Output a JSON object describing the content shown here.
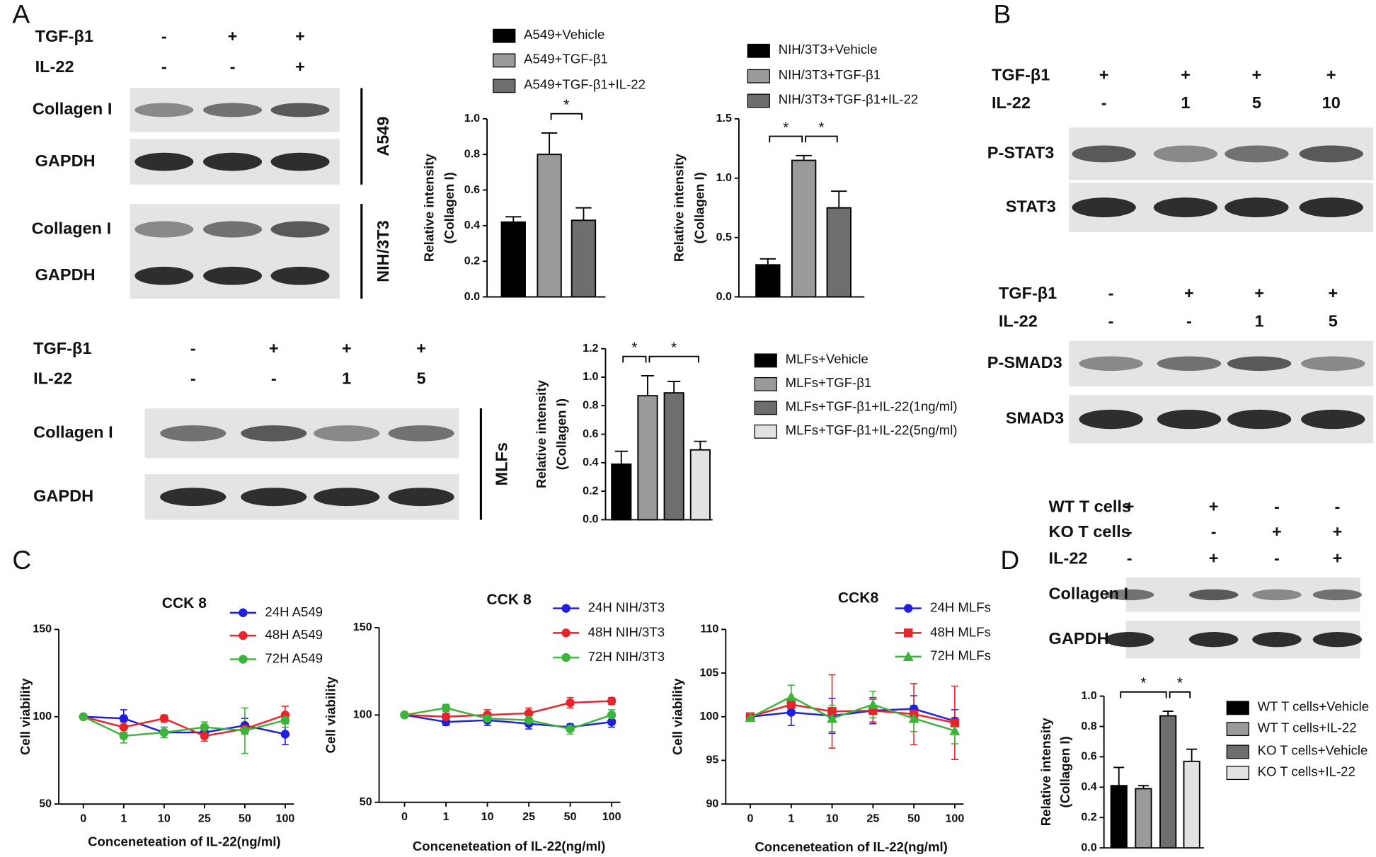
{
  "panel_labels": [
    "A",
    "B",
    "C",
    "D"
  ],
  "blots": [
    {
      "rows": [
        {
          "label": "TGF-β1",
          "lanes": [
            "-",
            "+",
            "+"
          ]
        },
        {
          "label": "IL-22",
          "lanes": [
            "-",
            "-",
            "+"
          ]
        }
      ],
      "groups": [
        {
          "name": "A549",
          "bands": [
            "Collagen I",
            "GAPDH"
          ]
        },
        {
          "name": "NIH/3T3",
          "bands": [
            "Collagen I",
            "GAPDH"
          ]
        }
      ]
    },
    {
      "rows": [
        {
          "label": "TGF-β1",
          "lanes": [
            "-",
            "+",
            "+",
            "+"
          ]
        },
        {
          "label": "IL-22",
          "lanes": [
            "-",
            "-",
            "1",
            "5"
          ]
        }
      ],
      "groups": [
        {
          "name": "MLFs",
          "bands": [
            "Collagen I",
            "GAPDH"
          ]
        }
      ]
    },
    {
      "rows": [
        {
          "label": "TGF-β1",
          "lanes": [
            "+",
            "+",
            "+",
            "+"
          ]
        },
        {
          "label": "IL-22",
          "lanes": [
            "-",
            "1",
            "5",
            "10"
          ]
        }
      ],
      "groups": [
        {
          "bands": [
            "P-STAT3",
            "STAT3"
          ]
        }
      ]
    },
    {
      "rows": [
        {
          "label": "TGF-β1",
          "lanes": [
            "-",
            "+",
            "+",
            "+"
          ]
        },
        {
          "label": "IL-22",
          "lanes": [
            "-",
            "-",
            "1",
            "5"
          ]
        }
      ],
      "groups": [
        {
          "bands": [
            "P-SMAD3",
            "SMAD3"
          ]
        }
      ]
    },
    {
      "rows": [
        {
          "label": "WT T cells",
          "lanes": [
            "+",
            "+",
            "-",
            "-"
          ]
        },
        {
          "label": "KO T cells",
          "lanes": [
            "-",
            "-",
            "+",
            "+"
          ]
        },
        {
          "label": "IL-22",
          "lanes": [
            "-",
            "+",
            "-",
            "+"
          ]
        }
      ],
      "groups": [
        {
          "bands": [
            "Collagen I",
            "GAPDH"
          ]
        }
      ]
    }
  ],
  "chart_data": [
    {
      "type": "bar",
      "ylabel": [
        "Relative intensity",
        "(Collagen I)"
      ],
      "ylim": [
        0,
        1.0
      ],
      "yticks": [
        {
          "value": 0,
          "label": "0.0"
        },
        0.2,
        0.4,
        0.6,
        0.8,
        {
          "value": 1.0,
          "label": "1.0"
        }
      ],
      "series": [
        {
          "name": "A549+Vehicle",
          "color": "#000000",
          "values": [
            0.42
          ],
          "errors": [
            0.03
          ]
        },
        {
          "name": "A549+TGF-β1",
          "color": "#9a9a9a",
          "values": [
            0.8
          ],
          "errors": [
            0.12
          ]
        },
        {
          "name": "A549+TGF-β1+IL-22",
          "color": "#6e6e6e",
          "values": [
            0.43
          ],
          "errors": [
            0.07
          ]
        }
      ],
      "annotations": [
        {
          "text": "*",
          "between": [
            1,
            2
          ]
        }
      ]
    },
    {
      "type": "bar",
      "ylabel": [
        "Relative intensity",
        "(Collagen I)"
      ],
      "ylim": [
        0,
        1.5
      ],
      "yticks": [
        {
          "value": 0,
          "label": "0.0"
        },
        0.5,
        {
          "value": 1.0,
          "label": "1.0"
        },
        1.5
      ],
      "series": [
        {
          "name": "NIH/3T3+Vehicle",
          "color": "#000000",
          "values": [
            0.27
          ],
          "errors": [
            0.05
          ]
        },
        {
          "name": "NIH/3T3+TGF-β1",
          "color": "#9a9a9a",
          "values": [
            1.15
          ],
          "errors": [
            0.04
          ]
        },
        {
          "name": "NIH/3T3+TGF-β1+IL-22",
          "color": "#6e6e6e",
          "values": [
            0.75
          ],
          "errors": [
            0.14
          ]
        }
      ],
      "annotations": [
        {
          "text": "*",
          "between": [
            0,
            1
          ]
        },
        {
          "text": "*",
          "between": [
            1,
            2
          ]
        }
      ]
    },
    {
      "type": "bar",
      "ylabel": [
        "Relative intensity",
        "(Collagen I)"
      ],
      "ylim": [
        0,
        1.2
      ],
      "yticks": [
        {
          "value": 0,
          "label": "0.0"
        },
        0.2,
        0.4,
        0.6,
        0.8,
        {
          "value": 1.0,
          "label": "1.0"
        },
        1.2
      ],
      "series": [
        {
          "name": "MLFs+Vehicle",
          "color": "#000000",
          "values": [
            0.39
          ],
          "errors": [
            0.09
          ]
        },
        {
          "name": "MLFs+TGF-β1",
          "color": "#9a9a9a",
          "values": [
            0.87
          ],
          "errors": [
            0.14
          ]
        },
        {
          "name": "MLFs+TGF-β1+IL-22(1ng/ml)",
          "color": "#6e6e6e",
          "values": [
            0.89
          ],
          "errors": [
            0.08
          ]
        },
        {
          "name": "MLFs+TGF-β1+IL-22(5ng/ml)",
          "color": "#e2e2e2",
          "values": [
            0.49
          ],
          "errors": [
            0.06
          ]
        }
      ],
      "annotations": [
        {
          "text": "*",
          "between": [
            0,
            1
          ]
        },
        {
          "text": "*",
          "between": [
            1,
            3
          ]
        }
      ]
    },
    {
      "type": "bar",
      "ylabel": [
        "Relative intensity",
        "(Collagen I)"
      ],
      "ylim": [
        0,
        1.0
      ],
      "yticks": [
        {
          "value": 0,
          "label": "0.0"
        },
        0.2,
        0.4,
        0.6,
        0.8,
        {
          "value": 1.0,
          "label": "1.0"
        }
      ],
      "series": [
        {
          "name": "WT T cells+Vehicle",
          "color": "#000000",
          "values": [
            0.41
          ],
          "errors": [
            0.12
          ]
        },
        {
          "name": "WT T cells+IL-22",
          "color": "#9a9a9a",
          "values": [
            0.39
          ],
          "errors": [
            0.02
          ]
        },
        {
          "name": "KO T cells+Vehicle",
          "color": "#6e6e6e",
          "values": [
            0.87
          ],
          "errors": [
            0.03
          ]
        },
        {
          "name": "KO T cells+IL-22",
          "color": "#e2e2e2",
          "values": [
            0.57
          ],
          "errors": [
            0.08
          ]
        }
      ],
      "annotations": [
        {
          "text": "*",
          "between": [
            0,
            2
          ]
        },
        {
          "text": "*",
          "between": [
            2,
            3
          ]
        }
      ]
    },
    {
      "type": "line",
      "title": "CCK 8",
      "xlabel": "Conceneteation of IL-22(ng/ml)",
      "ylabel": "Cell viability",
      "categories": [
        "0",
        "1",
        "10",
        "25",
        "50",
        "100"
      ],
      "ylim": [
        50,
        150
      ],
      "yticks": [
        50,
        100,
        150
      ],
      "series": [
        {
          "name": "24H A549",
          "color": "#1f1fdd",
          "marker": "circle",
          "values": [
            100,
            99,
            91,
            91,
            95,
            90
          ],
          "errors": [
            0,
            5,
            3,
            3,
            4,
            6
          ]
        },
        {
          "name": "48H A549",
          "color": "#e8232a",
          "marker": "circle",
          "values": [
            100,
            94,
            99,
            89,
            93,
            101
          ],
          "errors": [
            0,
            3,
            2,
            3,
            3,
            5
          ]
        },
        {
          "name": "72H A549",
          "color": "#3cb43c",
          "marker": "circle",
          "values": [
            100,
            89,
            91,
            94,
            92,
            98
          ],
          "errors": [
            0,
            4,
            3,
            3,
            13,
            4
          ]
        }
      ]
    },
    {
      "type": "line",
      "title": "CCK 8",
      "xlabel": "Conceneteation of IL-22(ng/ml)",
      "ylabel": "Cell viability",
      "categories": [
        "0",
        "1",
        "10",
        "25",
        "50",
        "100"
      ],
      "ylim": [
        50,
        150
      ],
      "yticks": [
        50,
        100,
        150
      ],
      "series": [
        {
          "name": "24H NIH/3T3",
          "color": "#1f1fdd",
          "marker": "circle",
          "values": [
            100,
            96,
            97,
            95,
            93,
            96
          ],
          "errors": [
            0,
            2,
            3,
            3,
            2,
            3
          ]
        },
        {
          "name": "48H NIH/3T3",
          "color": "#e8232a",
          "marker": "circle",
          "values": [
            100,
            99,
            100,
            101,
            107,
            108
          ],
          "errors": [
            0,
            2,
            3,
            3,
            3,
            2
          ]
        },
        {
          "name": "72H NIH/3T3",
          "color": "#3cb43c",
          "marker": "circle",
          "values": [
            100,
            104,
            98,
            97,
            92,
            100
          ],
          "errors": [
            0,
            2,
            2,
            3,
            3,
            3
          ]
        }
      ]
    },
    {
      "type": "line",
      "title": "CCK8",
      "xlabel": "Conceneteation of IL-22(ng/ml)",
      "ylabel": "Cell viability",
      "categories": [
        "0",
        "1",
        "10",
        "25",
        "50",
        "100"
      ],
      "ylim": [
        90,
        110
      ],
      "yticks": [
        90,
        95,
        100,
        105,
        110
      ],
      "series": [
        {
          "name": "24H MLFs",
          "color": "#1f1fdd",
          "marker": "circle",
          "values": [
            100,
            100.5,
            100.1,
            100.7,
            100.9,
            99.5
          ],
          "errors": [
            0,
            1.5,
            2,
            1.5,
            1.5,
            1.3
          ]
        },
        {
          "name": "48H MLFs",
          "color": "#e8232a",
          "marker": "square",
          "values": [
            100,
            101.4,
            100.6,
            100.7,
            100.3,
            99.3
          ],
          "errors": [
            0,
            0.7,
            4.2,
            1.3,
            3.5,
            4.2
          ]
        },
        {
          "name": "72H MLFs",
          "color": "#3cb43c",
          "marker": "triangle",
          "values": [
            99.9,
            102.3,
            99.8,
            101.4,
            99.8,
            98.4
          ],
          "errors": [
            0,
            1.3,
            1.5,
            1.5,
            1.5,
            1.5
          ]
        }
      ]
    }
  ]
}
